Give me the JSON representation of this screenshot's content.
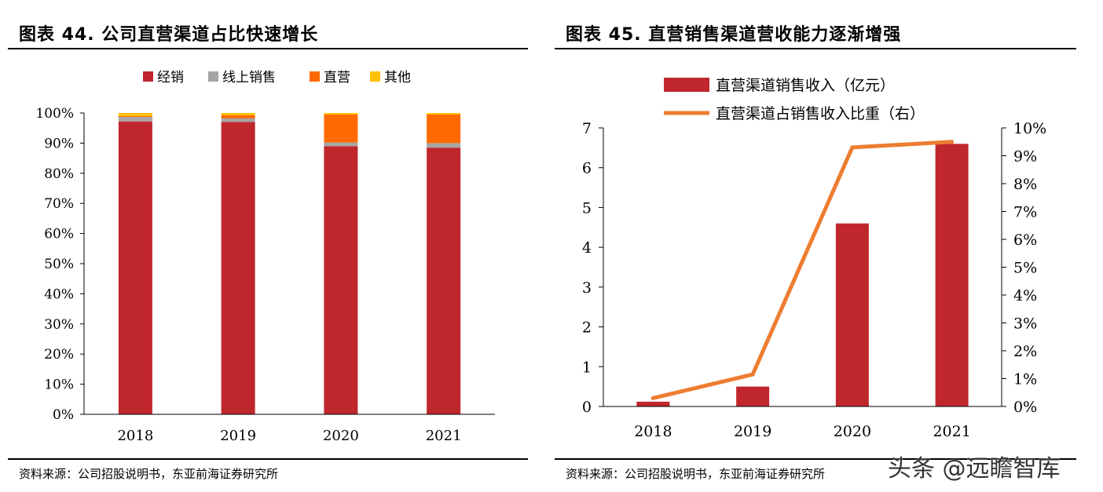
{
  "left": {
    "title": "图表 44. 公司直营渠道占比快速增长",
    "source": "资料来源：公司招股说明书，东亚前海证券研究所"
  },
  "right": {
    "title": "图表 45. 直营销售渠道营收能力逐渐增强",
    "source": "资料来源：公司招股说明书，东亚前海证券研究所"
  },
  "watermark": "头条 @远瞻智库",
  "chart_data": [
    {
      "type": "bar",
      "stacked": true,
      "title": "公司直营渠道占比快速增长",
      "categories": [
        "2018",
        "2019",
        "2020",
        "2021"
      ],
      "series": [
        {
          "name": "经销",
          "color": "#c0272d",
          "values": [
            97.2,
            97.0,
            89.0,
            88.5
          ]
        },
        {
          "name": "线上销售",
          "color": "#a6a6a6",
          "values": [
            1.5,
            1.2,
            1.2,
            1.5
          ]
        },
        {
          "name": "直营",
          "color": "#ff6a00",
          "values": [
            0.3,
            1.1,
            9.3,
            9.5
          ]
        },
        {
          "name": "其他",
          "color": "#ffc000",
          "values": [
            1.0,
            0.7,
            0.5,
            0.5
          ]
        }
      ],
      "ylim": [
        0,
        100
      ],
      "yticks": [
        "0%",
        "10%",
        "20%",
        "30%",
        "40%",
        "50%",
        "60%",
        "70%",
        "80%",
        "90%",
        "100%"
      ],
      "legend": "top"
    },
    {
      "type": "bar+line",
      "title": "直营销售渠道营收能力逐渐增强",
      "categories": [
        "2018",
        "2019",
        "2020",
        "2021"
      ],
      "bar_series": {
        "name": "直营渠道销售收入（亿元）",
        "color": "#c0272d",
        "values": [
          0.12,
          0.5,
          4.6,
          6.6
        ]
      },
      "line_series": {
        "name": "直营渠道占销售收入比重（右）",
        "color": "#ed7d31",
        "values": [
          0.3,
          1.15,
          9.3,
          9.5
        ]
      },
      "ylim_left": [
        0,
        7
      ],
      "yticks_left": [
        "0",
        "1",
        "2",
        "3",
        "4",
        "5",
        "6",
        "7"
      ],
      "ylim_right": [
        0,
        10
      ],
      "yticks_right": [
        "0%",
        "1%",
        "2%",
        "3%",
        "4%",
        "5%",
        "6%",
        "7%",
        "8%",
        "9%",
        "10%"
      ],
      "legend": "top"
    }
  ]
}
